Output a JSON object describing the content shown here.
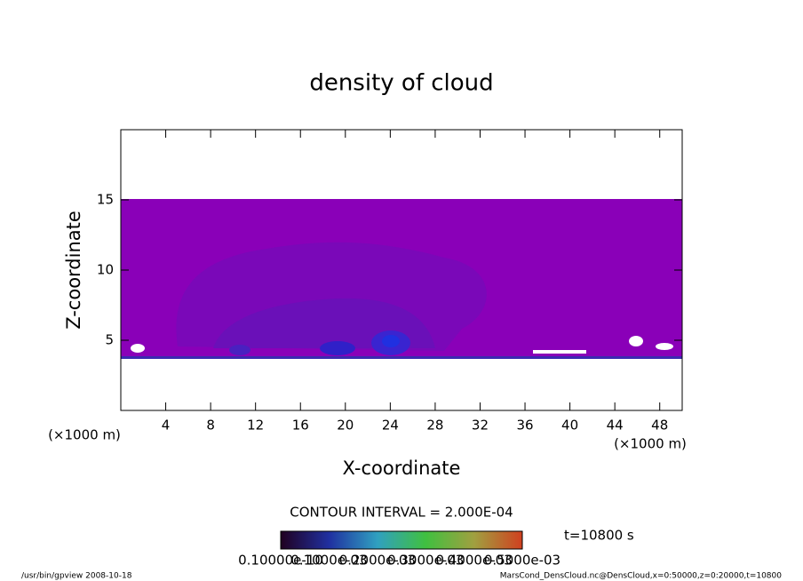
{
  "chart_data": {
    "type": "contour",
    "title": "density of cloud",
    "xlabel": "X-coordinate",
    "ylabel": "Z-coordinate",
    "xunit": "(×1000 m)",
    "yunit": "(×1000 m)",
    "xlim": [
      0,
      50
    ],
    "ylim": [
      0,
      20
    ],
    "xticks": [
      4,
      8,
      12,
      16,
      20,
      24,
      28,
      32,
      36,
      40,
      44,
      48
    ],
    "yticks": [
      5,
      10,
      15
    ],
    "contour_interval": "CONTOUR INTERVAL = 2.000E-04",
    "time": "t=10800 s",
    "colorbar_labels": [
      "0.10000e-10",
      "0.1000e-03",
      "0.2000e-03",
      "0.3000e-03",
      "0.4000e-03",
      "0.5000e-03"
    ],
    "footer_left": "/usr/bin/gpview   2008-10-18",
    "footer_right": "MarsCond_DensCloud.nc@DensCloud,x=0:50000,z=0:20000,t=10800"
  }
}
